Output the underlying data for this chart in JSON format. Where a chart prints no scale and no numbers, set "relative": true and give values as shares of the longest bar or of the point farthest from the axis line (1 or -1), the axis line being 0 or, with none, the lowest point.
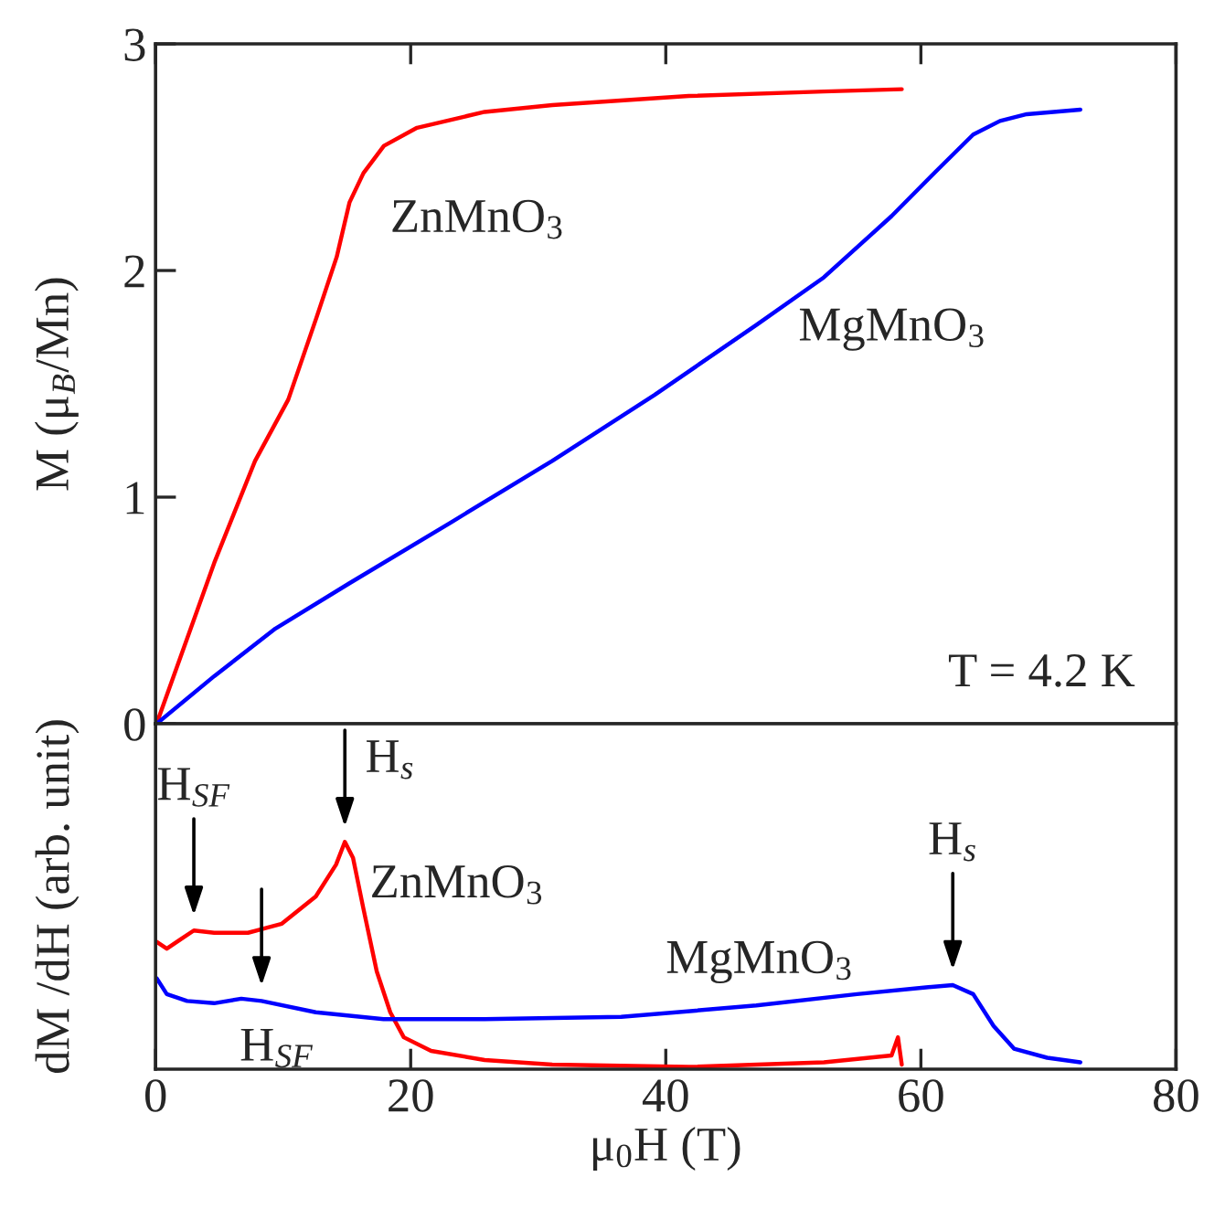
{
  "chart_data": [
    {
      "type": "line",
      "ylabel": "M (μ$_{B}$/Mn)",
      "xlim": [
        0,
        80
      ],
      "xticks": [
        0,
        20,
        40,
        60,
        80
      ],
      "ylim": [
        0,
        3
      ],
      "yticks": [
        0,
        1,
        2,
        3
      ],
      "tick_labels": "y",
      "annotations": [
        "T = 4.2 K"
      ],
      "series": [
        {
          "name": "ZnMnO$_{3}$",
          "color": "#ff0000",
          "x": [
            0.08,
            4.6,
            7.8,
            10.4,
            12.6,
            14.2,
            15.2,
            16.3,
            17.9,
            20.5,
            25.8,
            31.1,
            41.8,
            52.4,
            58.5
          ],
          "values": [
            0,
            0.71,
            1.16,
            1.43,
            1.79,
            2.06,
            2.3,
            2.43,
            2.55,
            2.63,
            2.7,
            2.73,
            2.77,
            2.79,
            2.8
          ]
        },
        {
          "name": "MgMnO$_{3}$",
          "color": "#0000ff",
          "x": [
            0.08,
            4.6,
            9.4,
            15.2,
            23.2,
            31.1,
            39.1,
            47.1,
            52.4,
            57.7,
            61.4,
            64.1,
            66.2,
            68.3,
            72.5
          ],
          "values": [
            0,
            0.21,
            0.42,
            0.62,
            0.89,
            1.16,
            1.45,
            1.76,
            1.97,
            2.24,
            2.45,
            2.6,
            2.66,
            2.69,
            2.71
          ]
        }
      ]
    },
    {
      "type": "line",
      "relative": true,
      "xlabel": "μ$_{0}$H (T)",
      "ylabel": "dM /dH (arb. unit)",
      "xlim": [
        0,
        80
      ],
      "xticks": [
        0,
        20,
        40,
        60,
        80
      ],
      "tick_labels": "x",
      "annotations": [
        {
          "text": "H$_{SF}$",
          "x": 3.0,
          "y": 0.61
        },
        {
          "text": "H$_{s}$",
          "x": 14.84,
          "y": 1.0
        },
        {
          "text": "H$_{SF}$",
          "x": 8.31,
          "y": 0.3
        },
        {
          "text": "H$_{s}$",
          "x": 62.5,
          "y": 0.37
        }
      ],
      "series": [
        {
          "name": "ZnMnO$_{3}$",
          "color": "#ff0000",
          "x": [
            0.08,
            0.88,
            1.94,
            3.0,
            4.59,
            7.25,
            9.9,
            12.56,
            14.15,
            14.84,
            15.48,
            16.28,
            17.34,
            18.4,
            19.46,
            21.6,
            25.8,
            31.1,
            41.8,
            52.4,
            57.7,
            58.2,
            58.5
          ],
          "values": [
            0.56,
            0.53,
            0.57,
            0.61,
            0.6,
            0.6,
            0.64,
            0.76,
            0.9,
            1.0,
            0.93,
            0.71,
            0.43,
            0.25,
            0.14,
            0.08,
            0.04,
            0.02,
            0.01,
            0.03,
            0.06,
            0.14,
            0.02
          ]
        },
        {
          "name": "MgMnO$_{3}$",
          "color": "#0000ff",
          "x": [
            0.08,
            0.88,
            2.47,
            4.59,
            6.72,
            8.31,
            12.56,
            17.87,
            25.8,
            36.5,
            47.1,
            55.0,
            60.4,
            62.5,
            64.1,
            65.7,
            67.3,
            69.9,
            72.5
          ],
          "values": [
            0.4,
            0.33,
            0.3,
            0.29,
            0.31,
            0.3,
            0.25,
            0.22,
            0.22,
            0.23,
            0.28,
            0.33,
            0.36,
            0.37,
            0.33,
            0.19,
            0.09,
            0.05,
            0.03
          ]
        }
      ]
    }
  ]
}
